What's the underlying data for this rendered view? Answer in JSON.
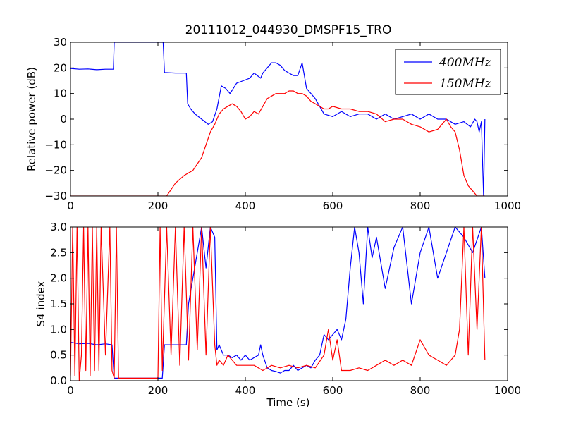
{
  "chart_data": [
    {
      "type": "line",
      "title": "20111012_044930_DMSPF15_TRO",
      "xlabel": "",
      "ylabel": "Relative power (dB)",
      "xlim": [
        0,
        1000
      ],
      "ylim": [
        -30,
        30
      ],
      "xticks": [
        "0",
        "200",
        "400",
        "600",
        "800",
        "1000"
      ],
      "yticks": [
        "−30",
        "−20",
        "−10",
        "0",
        "10",
        "20",
        "30"
      ],
      "legend_position": "top-right",
      "grid": false,
      "series": [
        {
          "name": "400MHz",
          "color": "#0000ff",
          "x": [
            0,
            20,
            40,
            60,
            80,
            98,
            100,
            150,
            200,
            212,
            215,
            240,
            265,
            268,
            275,
            285,
            300,
            315,
            325,
            335,
            345,
            355,
            365,
            380,
            395,
            410,
            420,
            435,
            440,
            450,
            460,
            470,
            480,
            490,
            500,
            510,
            520,
            530,
            535,
            540,
            560,
            580,
            600,
            620,
            640,
            660,
            680,
            700,
            720,
            740,
            760,
            780,
            800,
            820,
            840,
            860,
            880,
            900,
            915,
            925,
            930,
            935,
            940,
            945,
            948
          ],
          "y": [
            19.8,
            19.5,
            19.6,
            19.3,
            19.5,
            19.5,
            30,
            30,
            30,
            30,
            18.2,
            18,
            18,
            6,
            4,
            2,
            0,
            -2,
            -1,
            4,
            13,
            12,
            10,
            14,
            15,
            16,
            18,
            16,
            18,
            20,
            22,
            22,
            21,
            19,
            18,
            17,
            17,
            22,
            17,
            12,
            8,
            2,
            1,
            3,
            1,
            2,
            2,
            0,
            2,
            0,
            1,
            2,
            0,
            2,
            0,
            0,
            -2,
            -1,
            -3,
            0,
            -1,
            -5,
            -1,
            -30,
            0
          ]
        },
        {
          "name": "150MHz",
          "color": "#ff0000",
          "x": [
            0,
            50,
            100,
            150,
            200,
            220,
            240,
            260,
            280,
            300,
            310,
            320,
            330,
            340,
            350,
            360,
            370,
            380,
            390,
            400,
            410,
            420,
            430,
            440,
            450,
            460,
            470,
            480,
            490,
            500,
            510,
            520,
            530,
            540,
            550,
            560,
            570,
            580,
            590,
            600,
            620,
            640,
            660,
            680,
            700,
            720,
            740,
            760,
            780,
            800,
            820,
            840,
            850,
            860,
            870,
            880,
            890,
            900,
            910,
            920,
            930,
            940,
            948
          ],
          "y": [
            -30,
            -30,
            -30,
            -30,
            -30,
            -30,
            -25,
            -22,
            -20,
            -15,
            -10,
            -5,
            -2,
            2,
            4,
            5,
            6,
            5,
            3,
            0,
            1,
            3,
            2,
            5,
            8,
            9,
            10,
            10,
            10,
            11,
            11,
            10,
            10,
            9,
            7,
            6,
            5,
            4,
            4,
            5,
            4,
            4,
            3,
            3,
            2,
            -1,
            0,
            0,
            -2,
            -3,
            -5,
            -4,
            -2,
            0,
            -3,
            -5,
            -12,
            -22,
            -26,
            -28,
            -30,
            -30,
            -30
          ]
        }
      ]
    },
    {
      "type": "line",
      "title": "",
      "xlabel": "Time (s)",
      "ylabel": "S4 index",
      "xlim": [
        0,
        1000
      ],
      "ylim": [
        0,
        3
      ],
      "xticks": [
        "0",
        "200",
        "400",
        "600",
        "800",
        "1000"
      ],
      "yticks": [
        "0.0",
        "0.5",
        "1.0",
        "1.5",
        "2.0",
        "2.5",
        "3.0"
      ],
      "grid": false,
      "series": [
        {
          "name": "400MHz",
          "color": "#0000ff",
          "x": [
            0,
            20,
            40,
            60,
            80,
            95,
            100,
            105,
            150,
            200,
            210,
            215,
            240,
            265,
            270,
            290,
            300,
            310,
            320,
            330,
            335,
            340,
            350,
            360,
            370,
            380,
            390,
            400,
            410,
            420,
            430,
            435,
            440,
            450,
            460,
            470,
            480,
            490,
            500,
            510,
            520,
            530,
            540,
            550,
            560,
            570,
            580,
            590,
            600,
            610,
            620,
            630,
            640,
            650,
            660,
            670,
            680,
            690,
            700,
            720,
            740,
            760,
            780,
            800,
            820,
            840,
            860,
            880,
            900,
            920,
            940,
            948
          ],
          "y": [
            0.75,
            0.72,
            0.73,
            0.7,
            0.72,
            0.7,
            0.05,
            0.05,
            0.05,
            0.05,
            0.05,
            0.7,
            0.7,
            0.7,
            1.5,
            2.5,
            3,
            2.2,
            3,
            2.8,
            0.6,
            0.7,
            0.5,
            0.5,
            0.45,
            0.5,
            0.4,
            0.5,
            0.4,
            0.45,
            0.5,
            0.7,
            0.5,
            0.25,
            0.2,
            0.18,
            0.15,
            0.2,
            0.2,
            0.3,
            0.2,
            0.25,
            0.3,
            0.25,
            0.4,
            0.5,
            0.9,
            0.8,
            0.9,
            1.0,
            0.8,
            1.2,
            2.2,
            3,
            2.5,
            1.5,
            3,
            2.4,
            2.8,
            1.8,
            2.6,
            3,
            1.5,
            2.5,
            3,
            2,
            2.5,
            3,
            2.8,
            2.5,
            3,
            2.0
          ]
        },
        {
          "name": "150MHz",
          "color": "#ff0000",
          "x": [
            0,
            5,
            10,
            15,
            20,
            25,
            30,
            35,
            40,
            45,
            50,
            55,
            60,
            65,
            70,
            80,
            90,
            95,
            100,
            105,
            110,
            115,
            200,
            205,
            210,
            220,
            230,
            240,
            250,
            260,
            270,
            280,
            290,
            300,
            310,
            320,
            330,
            335,
            340,
            350,
            360,
            370,
            380,
            400,
            420,
            440,
            460,
            480,
            500,
            520,
            540,
            560,
            580,
            590,
            600,
            610,
            620,
            640,
            660,
            680,
            700,
            720,
            740,
            760,
            780,
            800,
            820,
            840,
            860,
            880,
            890,
            900,
            910,
            920,
            930,
            940,
            948
          ],
          "y": [
            0.1,
            3,
            0.1,
            3,
            0,
            0.5,
            3,
            0.2,
            3,
            0.1,
            3,
            0.2,
            3,
            0.2,
            3,
            0.5,
            3,
            0.2,
            0.05,
            3,
            0.05,
            0.05,
            0.05,
            3,
            0.2,
            3,
            0.5,
            3,
            0.3,
            3,
            0.4,
            3,
            0.6,
            3,
            0.5,
            3,
            0.7,
            0.3,
            0.4,
            0.3,
            0.5,
            0.4,
            0.3,
            0.3,
            0.3,
            0.2,
            0.3,
            0.25,
            0.3,
            0.25,
            0.3,
            0.25,
            0.5,
            1.0,
            0.4,
            0.8,
            0.2,
            0.2,
            0.25,
            0.2,
            0.3,
            0.4,
            0.3,
            0.4,
            0.3,
            0.8,
            0.5,
            0.4,
            0.3,
            0.5,
            1.0,
            3,
            0.5,
            3,
            1.0,
            3,
            0.4
          ]
        }
      ]
    }
  ]
}
